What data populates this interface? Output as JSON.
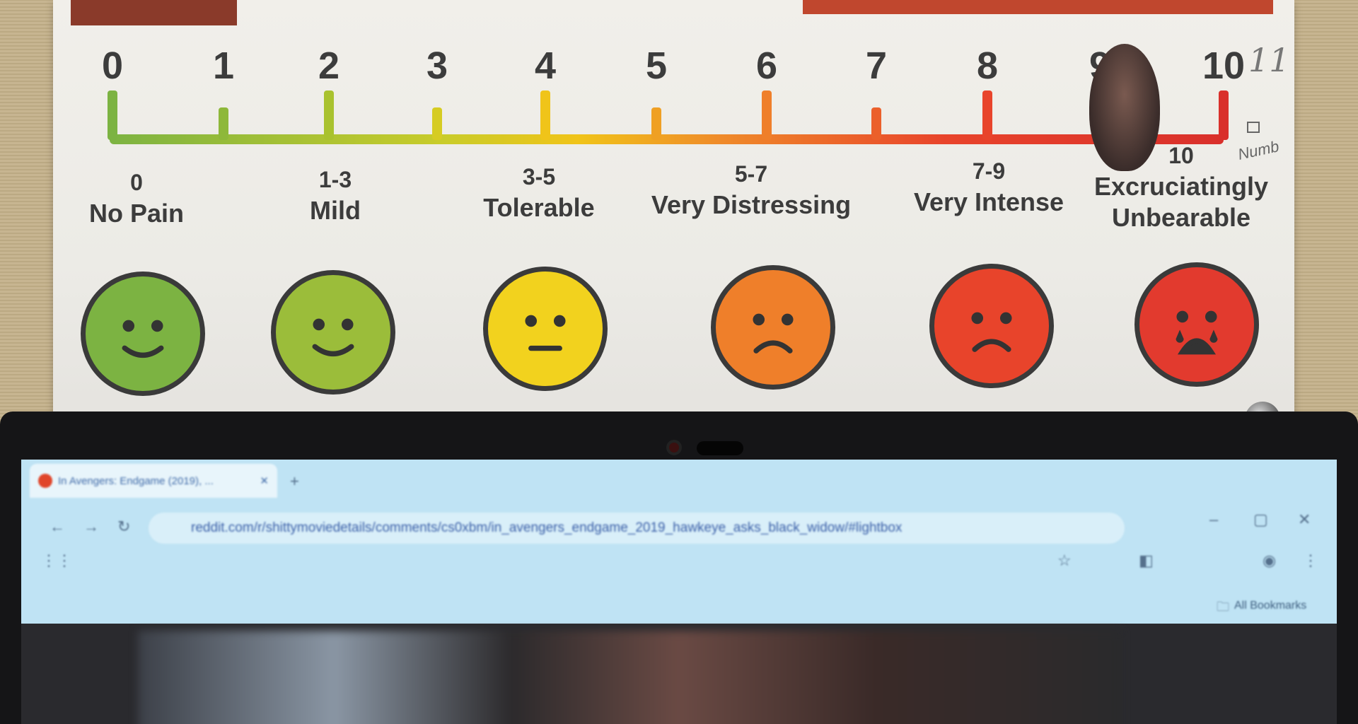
{
  "poster": {
    "scale_numbers": [
      "0",
      "1",
      "2",
      "3",
      "4",
      "5",
      "6",
      "7",
      "8",
      "9",
      "10"
    ],
    "handwritten_extra_number": "11",
    "handwritten_note": "Numb",
    "categories": [
      {
        "range": "0",
        "label": "No Pain",
        "color": "#7cb342",
        "mood": "smile"
      },
      {
        "range": "1-3",
        "label": "Mild",
        "color": "#9bbd3a",
        "mood": "smile"
      },
      {
        "range": "3-5",
        "label": "Tolerable",
        "color": "#f2d21e",
        "mood": "neutral"
      },
      {
        "range": "5-7",
        "label": "Very Distressing",
        "color": "#ef7f2a",
        "mood": "frown"
      },
      {
        "range": "7-9",
        "label": "Very Intense",
        "color": "#e8442b",
        "mood": "frown"
      },
      {
        "range": "10",
        "label": "Excruciatingly Unbearable",
        "color": "#e23a2e",
        "mood": "crying"
      }
    ]
  },
  "browser": {
    "tab_title": "In Avengers: Endgame (2019), ...",
    "url": "reddit.com/r/shittymoviedetails/comments/cs0xbm/in_avengers_endgame_2019_hawkeye_asks_black_widow/#lightbox",
    "bookmarks_label": "All Bookmarks"
  }
}
